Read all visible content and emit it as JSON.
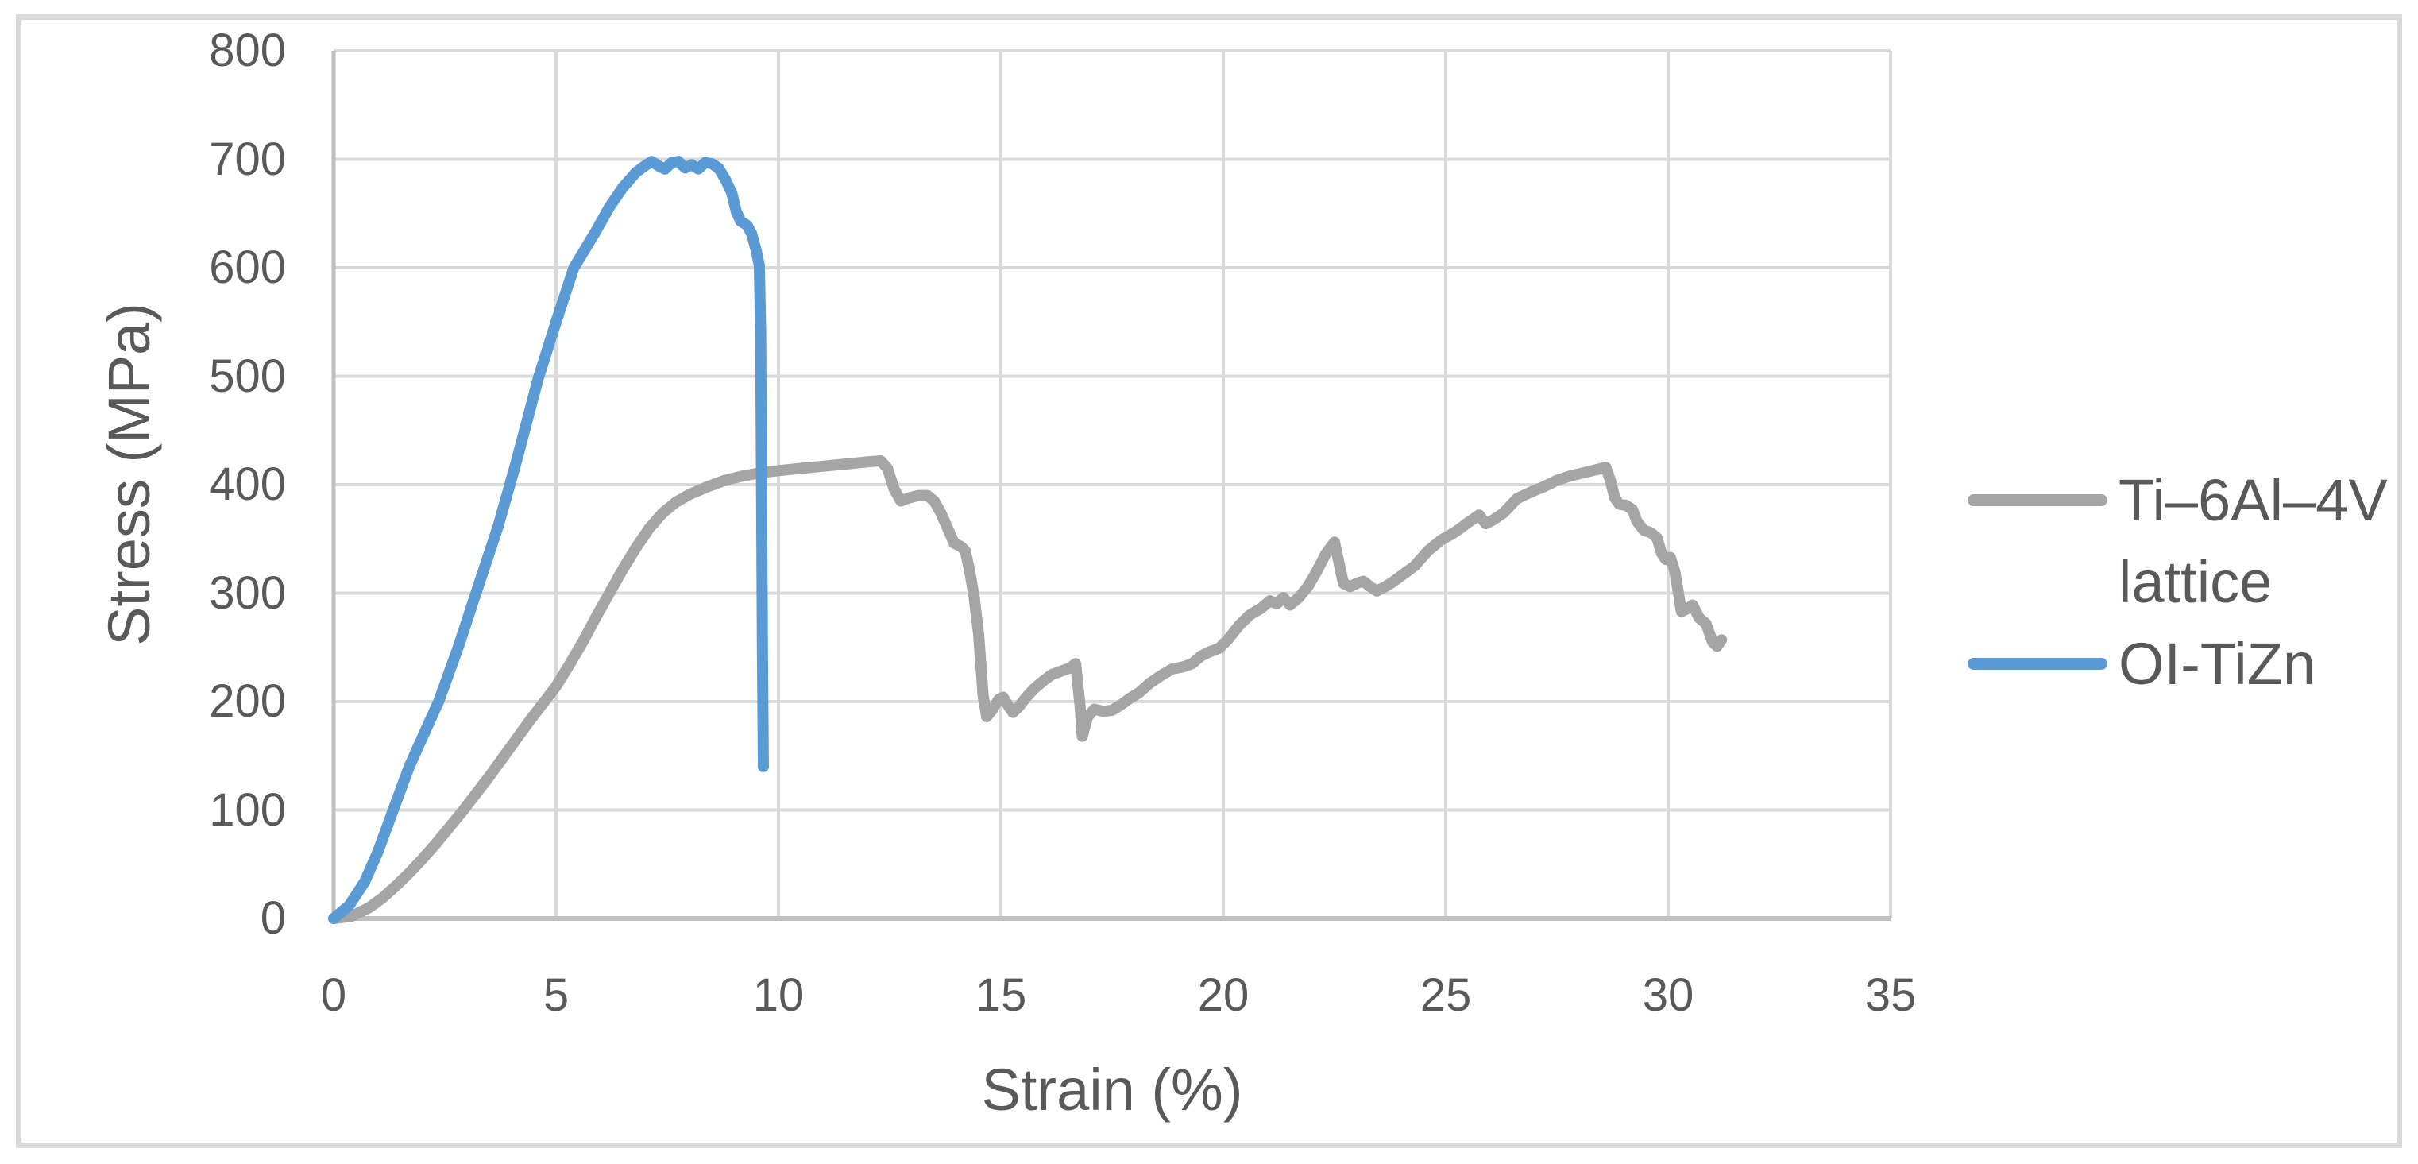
{
  "page": {
    "background": "#FFFFFF",
    "frame_color": "#D9D9D9"
  },
  "chart_data": {
    "type": "line",
    "title": "",
    "xlabel": "Strain (%)",
    "ylabel": "Stress (MPa)",
    "xlim": [
      0,
      35
    ],
    "ylim": [
      0,
      800
    ],
    "x_ticks": [
      0,
      5,
      10,
      15,
      20,
      25,
      30,
      35
    ],
    "y_ticks": [
      0,
      100,
      200,
      300,
      400,
      500,
      600,
      700,
      800
    ],
    "grid": true,
    "grid_color": "#D9D9D9",
    "axis_color": "#BFBFBF",
    "text_color": "#595959",
    "legend_position": "right",
    "series": [
      {
        "name": "Ti–6Al–4V lattice",
        "color": "#A5A5A5",
        "points": [
          [
            0,
            0
          ],
          [
            0.4,
            2
          ],
          [
            0.8,
            10
          ],
          [
            1.1,
            19
          ],
          [
            1.4,
            30
          ],
          [
            1.7,
            42
          ],
          [
            2.0,
            55
          ],
          [
            2.3,
            69
          ],
          [
            2.6,
            84
          ],
          [
            2.9,
            99
          ],
          [
            3.2,
            115
          ],
          [
            3.5,
            131
          ],
          [
            3.8,
            148
          ],
          [
            4.1,
            165
          ],
          [
            4.4,
            182
          ],
          [
            4.7,
            198
          ],
          [
            5.0,
            214
          ],
          [
            5.3,
            234
          ],
          [
            5.6,
            255
          ],
          [
            5.9,
            278
          ],
          [
            6.2,
            300
          ],
          [
            6.5,
            322
          ],
          [
            6.8,
            342
          ],
          [
            7.1,
            360
          ],
          [
            7.4,
            374
          ],
          [
            7.7,
            384
          ],
          [
            8.0,
            391
          ],
          [
            8.4,
            398
          ],
          [
            8.8,
            404
          ],
          [
            9.2,
            408
          ],
          [
            9.6,
            411
          ],
          [
            10.0,
            413
          ],
          [
            10.5,
            415
          ],
          [
            11.0,
            417
          ],
          [
            11.5,
            419
          ],
          [
            12.0,
            421
          ],
          [
            12.3,
            422
          ],
          [
            12.45,
            415
          ],
          [
            12.6,
            396
          ],
          [
            12.75,
            385
          ],
          [
            12.95,
            388
          ],
          [
            13.15,
            390
          ],
          [
            13.35,
            390
          ],
          [
            13.5,
            385
          ],
          [
            13.65,
            374
          ],
          [
            13.8,
            360
          ],
          [
            13.95,
            346
          ],
          [
            14.1,
            343
          ],
          [
            14.2,
            339
          ],
          [
            14.3,
            320
          ],
          [
            14.4,
            296
          ],
          [
            14.5,
            262
          ],
          [
            14.6,
            206
          ],
          [
            14.68,
            186
          ],
          [
            14.8,
            192
          ],
          [
            14.95,
            202
          ],
          [
            15.05,
            204
          ],
          [
            15.17,
            196
          ],
          [
            15.27,
            190
          ],
          [
            15.4,
            195
          ],
          [
            15.55,
            203
          ],
          [
            15.75,
            212
          ],
          [
            15.95,
            219
          ],
          [
            16.15,
            225
          ],
          [
            16.35,
            228
          ],
          [
            16.55,
            231
          ],
          [
            16.68,
            235
          ],
          [
            16.78,
            196
          ],
          [
            16.83,
            168
          ],
          [
            16.95,
            186
          ],
          [
            17.1,
            193
          ],
          [
            17.3,
            191
          ],
          [
            17.5,
            192
          ],
          [
            17.7,
            197
          ],
          [
            17.9,
            203
          ],
          [
            18.1,
            208
          ],
          [
            18.35,
            217
          ],
          [
            18.6,
            224
          ],
          [
            18.85,
            230
          ],
          [
            19.1,
            232
          ],
          [
            19.3,
            235
          ],
          [
            19.5,
            242
          ],
          [
            19.7,
            246
          ],
          [
            19.9,
            249
          ],
          [
            20.1,
            257
          ],
          [
            20.35,
            270
          ],
          [
            20.6,
            280
          ],
          [
            20.85,
            286
          ],
          [
            21.05,
            293
          ],
          [
            21.2,
            290
          ],
          [
            21.35,
            296
          ],
          [
            21.5,
            289
          ],
          [
            21.7,
            296
          ],
          [
            21.9,
            306
          ],
          [
            22.1,
            320
          ],
          [
            22.3,
            336
          ],
          [
            22.5,
            347
          ],
          [
            22.6,
            328
          ],
          [
            22.7,
            309
          ],
          [
            22.85,
            306
          ],
          [
            23.0,
            309
          ],
          [
            23.15,
            311
          ],
          [
            23.3,
            306
          ],
          [
            23.45,
            302
          ],
          [
            23.6,
            305
          ],
          [
            23.8,
            310
          ],
          [
            24.0,
            316
          ],
          [
            24.3,
            325
          ],
          [
            24.6,
            339
          ],
          [
            24.9,
            349
          ],
          [
            25.2,
            356
          ],
          [
            25.5,
            365
          ],
          [
            25.75,
            372
          ],
          [
            25.9,
            364
          ],
          [
            26.05,
            367
          ],
          [
            26.3,
            374
          ],
          [
            26.6,
            387
          ],
          [
            26.9,
            393
          ],
          [
            27.2,
            398
          ],
          [
            27.5,
            404
          ],
          [
            27.8,
            408
          ],
          [
            28.1,
            411
          ],
          [
            28.4,
            414
          ],
          [
            28.6,
            416
          ],
          [
            28.7,
            404
          ],
          [
            28.8,
            388
          ],
          [
            28.9,
            382
          ],
          [
            29.05,
            381
          ],
          [
            29.2,
            377
          ],
          [
            29.3,
            366
          ],
          [
            29.45,
            358
          ],
          [
            29.6,
            356
          ],
          [
            29.75,
            351
          ],
          [
            29.85,
            337
          ],
          [
            29.95,
            331
          ],
          [
            30.05,
            333
          ],
          [
            30.15,
            320
          ],
          [
            30.3,
            283
          ],
          [
            30.45,
            286
          ],
          [
            30.55,
            289
          ],
          [
            30.7,
            277
          ],
          [
            30.85,
            272
          ],
          [
            31.0,
            255
          ],
          [
            31.1,
            251
          ],
          [
            31.2,
            257
          ]
        ]
      },
      {
        "name": "OI-TiZn",
        "color": "#5B9BD5",
        "points": [
          [
            0,
            0
          ],
          [
            0.35,
            12
          ],
          [
            0.7,
            34
          ],
          [
            1.0,
            62
          ],
          [
            1.34,
            100
          ],
          [
            1.7,
            140
          ],
          [
            2.05,
            172
          ],
          [
            2.36,
            200
          ],
          [
            2.8,
            250
          ],
          [
            3.2,
            300
          ],
          [
            3.7,
            362
          ],
          [
            4.1,
            420
          ],
          [
            4.6,
            498
          ],
          [
            5.0,
            550
          ],
          [
            5.4,
            600
          ],
          [
            5.9,
            634
          ],
          [
            6.2,
            656
          ],
          [
            6.5,
            674
          ],
          [
            6.8,
            688
          ],
          [
            7.0,
            694
          ],
          [
            7.15,
            698
          ],
          [
            7.3,
            694
          ],
          [
            7.45,
            691
          ],
          [
            7.6,
            697
          ],
          [
            7.75,
            698
          ],
          [
            7.9,
            692
          ],
          [
            8.05,
            695
          ],
          [
            8.2,
            691
          ],
          [
            8.35,
            697
          ],
          [
            8.5,
            696
          ],
          [
            8.65,
            692
          ],
          [
            8.8,
            682
          ],
          [
            8.95,
            669
          ],
          [
            9.05,
            652
          ],
          [
            9.15,
            643
          ],
          [
            9.3,
            639
          ],
          [
            9.4,
            631
          ],
          [
            9.5,
            616
          ],
          [
            9.57,
            602
          ],
          [
            9.6,
            540
          ],
          [
            9.62,
            400
          ],
          [
            9.64,
            250
          ],
          [
            9.66,
            140
          ]
        ]
      }
    ]
  },
  "legend": {
    "items": [
      {
        "id": "ti-6al-4v-lattice",
        "color": "#A5A5A5",
        "line1": "Ti–6Al–4V",
        "line2": "lattice"
      },
      {
        "id": "oi-tizn",
        "color": "#5B9BD5",
        "line1": "OI-TiZn",
        "line2": ""
      }
    ]
  }
}
